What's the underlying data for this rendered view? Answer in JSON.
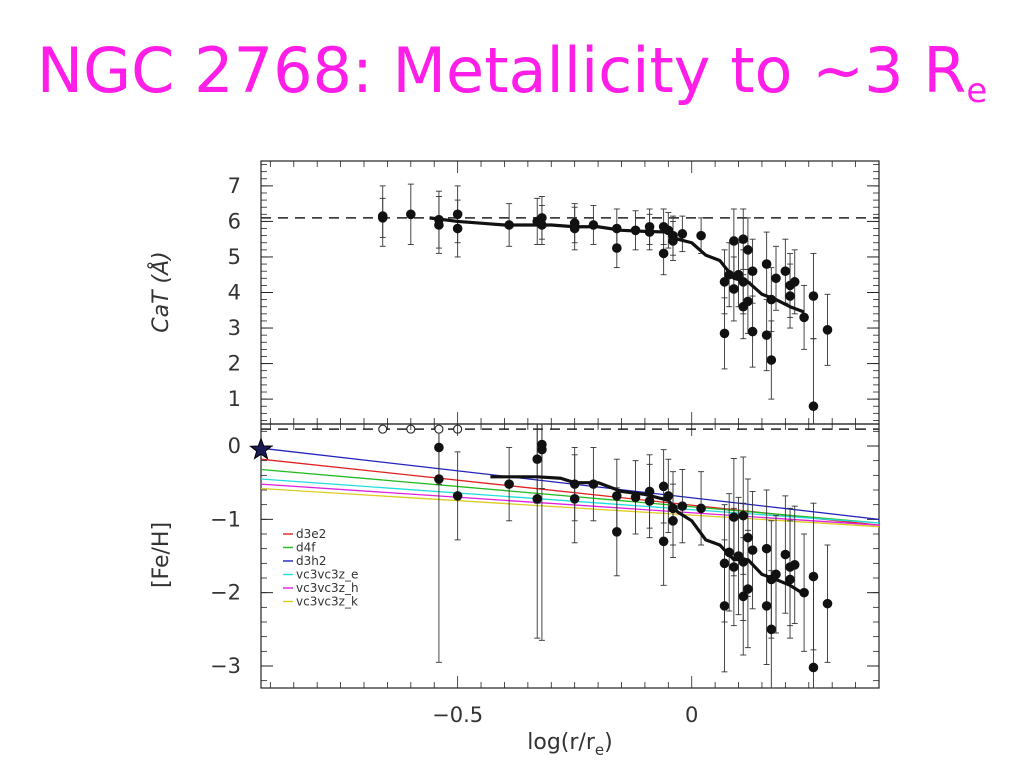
{
  "title": {
    "text": "NGC 2768: Metallicity to ~3 R",
    "subscript": "e"
  },
  "colors": {
    "title": "#ff1ee8",
    "points": "#111111",
    "profile": "#111111",
    "reference": "#222222"
  },
  "chart_data": [
    {
      "type": "scatter",
      "panel": "top",
      "ylabel": "CaT (Å)",
      "xlim": [
        -0.92,
        0.4
      ],
      "ylim": [
        0.3,
        7.7
      ],
      "xticks": [
        -0.5,
        0
      ],
      "yticks": [
        1,
        2,
        3,
        4,
        5,
        6,
        7
      ],
      "ytick_labels": [
        "1",
        "2",
        "3",
        "4",
        "5",
        "6",
        "7"
      ],
      "reference_line": 6.1,
      "points": [
        {
          "x": -0.66,
          "y": 6.15,
          "err": 0.85
        },
        {
          "x": -0.66,
          "y": 6.1,
          "err": 0.55
        },
        {
          "x": -0.6,
          "y": 6.2,
          "err": 0.85
        },
        {
          "x": -0.54,
          "y": 6.05,
          "err": 0.8
        },
        {
          "x": -0.54,
          "y": 5.9,
          "err": 0.8
        },
        {
          "x": -0.5,
          "y": 6.2,
          "err": 0.8
        },
        {
          "x": -0.5,
          "y": 5.8,
          "err": 0.8
        },
        {
          "x": -0.39,
          "y": 5.9,
          "err": 0.6
        },
        {
          "x": -0.33,
          "y": 6.0,
          "err": 0.65
        },
        {
          "x": -0.32,
          "y": 6.1,
          "err": 0.6
        },
        {
          "x": -0.32,
          "y": 5.9,
          "err": 0.55
        },
        {
          "x": -0.25,
          "y": 5.8,
          "err": 0.6
        },
        {
          "x": -0.25,
          "y": 5.95,
          "err": 0.55
        },
        {
          "x": -0.21,
          "y": 5.9,
          "err": 0.55
        },
        {
          "x": -0.16,
          "y": 5.8,
          "err": 0.55
        },
        {
          "x": -0.16,
          "y": 5.25,
          "err": 0.55
        },
        {
          "x": -0.12,
          "y": 5.75,
          "err": 0.55
        },
        {
          "x": -0.09,
          "y": 5.85,
          "err": 0.5
        },
        {
          "x": -0.09,
          "y": 5.7,
          "err": 0.5
        },
        {
          "x": -0.06,
          "y": 5.85,
          "err": 0.5
        },
        {
          "x": -0.06,
          "y": 5.1,
          "err": 0.6
        },
        {
          "x": -0.05,
          "y": 5.75,
          "err": 0.5
        },
        {
          "x": -0.04,
          "y": 5.6,
          "err": 0.55
        },
        {
          "x": -0.04,
          "y": 5.45,
          "err": 0.55
        },
        {
          "x": -0.02,
          "y": 5.65,
          "err": 0.5
        },
        {
          "x": 0.02,
          "y": 5.6,
          "err": 0.5
        },
        {
          "x": 0.07,
          "y": 4.3,
          "err": 0.9
        },
        {
          "x": 0.07,
          "y": 2.85,
          "err": 1.0
        },
        {
          "x": 0.08,
          "y": 4.5,
          "err": 0.9
        },
        {
          "x": 0.09,
          "y": 5.45,
          "err": 0.9
        },
        {
          "x": 0.09,
          "y": 4.1,
          "err": 0.9
        },
        {
          "x": 0.1,
          "y": 4.5,
          "err": 0.9
        },
        {
          "x": 0.11,
          "y": 5.5,
          "err": 0.85
        },
        {
          "x": 0.11,
          "y": 4.3,
          "err": 0.9
        },
        {
          "x": 0.11,
          "y": 3.6,
          "err": 0.9
        },
        {
          "x": 0.12,
          "y": 5.2,
          "err": 0.9
        },
        {
          "x": 0.12,
          "y": 3.75,
          "err": 0.9
        },
        {
          "x": 0.13,
          "y": 4.6,
          "err": 0.9
        },
        {
          "x": 0.13,
          "y": 2.9,
          "err": 1.0
        },
        {
          "x": 0.16,
          "y": 4.8,
          "err": 0.9
        },
        {
          "x": 0.16,
          "y": 2.8,
          "err": 1.0
        },
        {
          "x": 0.17,
          "y": 3.8,
          "err": 0.9
        },
        {
          "x": 0.17,
          "y": 2.1,
          "err": 1.1
        },
        {
          "x": 0.18,
          "y": 4.4,
          "err": 0.9
        },
        {
          "x": 0.2,
          "y": 4.6,
          "err": 0.9
        },
        {
          "x": 0.21,
          "y": 4.2,
          "err": 0.9
        },
        {
          "x": 0.21,
          "y": 3.9,
          "err": 0.9
        },
        {
          "x": 0.22,
          "y": 4.3,
          "err": 0.9
        },
        {
          "x": 0.24,
          "y": 3.3,
          "err": 0.9
        },
        {
          "x": 0.26,
          "y": 3.9,
          "err": 1.2
        },
        {
          "x": 0.26,
          "y": 0.8,
          "err": 1.9
        },
        {
          "x": 0.29,
          "y": 2.95,
          "err": 1.0
        }
      ],
      "profile_line": [
        {
          "x": -0.56,
          "y": 6.1
        },
        {
          "x": -0.5,
          "y": 6.0
        },
        {
          "x": -0.45,
          "y": 5.95
        },
        {
          "x": -0.4,
          "y": 5.9
        },
        {
          "x": -0.35,
          "y": 5.9
        },
        {
          "x": -0.3,
          "y": 5.9
        },
        {
          "x": -0.25,
          "y": 5.85
        },
        {
          "x": -0.2,
          "y": 5.85
        },
        {
          "x": -0.15,
          "y": 5.75
        },
        {
          "x": -0.1,
          "y": 5.72
        },
        {
          "x": -0.05,
          "y": 5.7
        },
        {
          "x": -0.03,
          "y": 5.5
        },
        {
          "x": 0.0,
          "y": 5.4
        },
        {
          "x": 0.03,
          "y": 5.05
        },
        {
          "x": 0.06,
          "y": 4.9
        },
        {
          "x": 0.09,
          "y": 4.4
        },
        {
          "x": 0.12,
          "y": 4.3
        },
        {
          "x": 0.15,
          "y": 3.95
        },
        {
          "x": 0.18,
          "y": 3.8
        },
        {
          "x": 0.21,
          "y": 3.6
        },
        {
          "x": 0.24,
          "y": 3.45
        }
      ]
    },
    {
      "type": "scatter",
      "panel": "bottom",
      "ylabel": "[Fe/H]",
      "xlabel": "log(r/r",
      "xlabel_sub": "e",
      "xlabel_close": ")",
      "xlim": [
        -0.92,
        0.4
      ],
      "ylim": [
        -3.3,
        0.3
      ],
      "xticks": [
        -0.5,
        0
      ],
      "xtick_labels": [
        "−0.5",
        "0"
      ],
      "yticks": [
        0,
        -1,
        -2,
        -3
      ],
      "ytick_labels": [
        "0",
        "−1",
        "−2",
        "−3"
      ],
      "reference_line": 0.23,
      "star_point": {
        "x": -0.92,
        "y": -0.05
      },
      "open_points": [
        {
          "x": -0.66,
          "y": 0.23
        },
        {
          "x": -0.6,
          "y": 0.23
        },
        {
          "x": -0.54,
          "y": 0.23
        },
        {
          "x": -0.5,
          "y": 0.23
        }
      ],
      "points": [
        {
          "x": -0.54,
          "y": -0.02,
          "err": 0.5
        },
        {
          "x": -0.54,
          "y": -0.45,
          "err": 2.5
        },
        {
          "x": -0.5,
          "y": -0.68,
          "err": 0.6
        },
        {
          "x": -0.39,
          "y": -0.52,
          "err": 0.5
        },
        {
          "x": -0.33,
          "y": -0.72,
          "err": 1.9
        },
        {
          "x": -0.33,
          "y": -0.18,
          "err": 0.6
        },
        {
          "x": -0.32,
          "y": 0.02,
          "err": 0.6
        },
        {
          "x": -0.32,
          "y": -0.05,
          "err": 2.6
        },
        {
          "x": -0.25,
          "y": -0.52,
          "err": 0.5
        },
        {
          "x": -0.25,
          "y": -0.72,
          "err": 0.6
        },
        {
          "x": -0.21,
          "y": -0.52,
          "err": 0.5
        },
        {
          "x": -0.16,
          "y": -0.68,
          "err": 0.5
        },
        {
          "x": -0.16,
          "y": -1.17,
          "err": 0.6
        },
        {
          "x": -0.12,
          "y": -0.7,
          "err": 0.5
        },
        {
          "x": -0.09,
          "y": -0.62,
          "err": 0.5
        },
        {
          "x": -0.09,
          "y": -0.75,
          "err": 0.5
        },
        {
          "x": -0.06,
          "y": -0.55,
          "err": 0.5
        },
        {
          "x": -0.06,
          "y": -1.3,
          "err": 0.6
        },
        {
          "x": -0.05,
          "y": -0.68,
          "err": 0.5
        },
        {
          "x": -0.04,
          "y": -0.85,
          "err": 0.5
        },
        {
          "x": -0.04,
          "y": -1.02,
          "err": 0.5
        },
        {
          "x": -0.02,
          "y": -0.82,
          "err": 0.5
        },
        {
          "x": 0.02,
          "y": -0.85,
          "err": 0.5
        },
        {
          "x": 0.07,
          "y": -1.6,
          "err": 0.8
        },
        {
          "x": 0.07,
          "y": -2.18,
          "err": 0.9
        },
        {
          "x": 0.08,
          "y": -1.45,
          "err": 0.8
        },
        {
          "x": 0.09,
          "y": -0.97,
          "err": 0.8
        },
        {
          "x": 0.09,
          "y": -1.65,
          "err": 0.8
        },
        {
          "x": 0.1,
          "y": -1.5,
          "err": 0.8
        },
        {
          "x": 0.11,
          "y": -0.95,
          "err": 0.8
        },
        {
          "x": 0.11,
          "y": -1.58,
          "err": 0.8
        },
        {
          "x": 0.11,
          "y": -2.05,
          "err": 0.8
        },
        {
          "x": 0.12,
          "y": -1.25,
          "err": 0.8
        },
        {
          "x": 0.12,
          "y": -1.95,
          "err": 0.8
        },
        {
          "x": 0.13,
          "y": -1.42,
          "err": 0.8
        },
        {
          "x": 0.16,
          "y": -1.4,
          "err": 0.8
        },
        {
          "x": 0.16,
          "y": -2.18,
          "err": 0.8
        },
        {
          "x": 0.17,
          "y": -1.82,
          "err": 0.8
        },
        {
          "x": 0.17,
          "y": -2.5,
          "err": 0.8
        },
        {
          "x": 0.18,
          "y": -1.75,
          "err": 0.8
        },
        {
          "x": 0.2,
          "y": -1.48,
          "err": 0.8
        },
        {
          "x": 0.21,
          "y": -1.65,
          "err": 0.8
        },
        {
          "x": 0.21,
          "y": -1.82,
          "err": 0.8
        },
        {
          "x": 0.22,
          "y": -1.62,
          "err": 0.8
        },
        {
          "x": 0.24,
          "y": -2.0,
          "err": 0.8
        },
        {
          "x": 0.26,
          "y": -1.78,
          "err": 1.0
        },
        {
          "x": 0.26,
          "y": -3.02,
          "err": 1.2
        },
        {
          "x": 0.29,
          "y": -2.15,
          "err": 0.8
        }
      ],
      "profile_line": [
        {
          "x": -0.43,
          "y": -0.42
        },
        {
          "x": -0.38,
          "y": -0.42
        },
        {
          "x": -0.33,
          "y": -0.42
        },
        {
          "x": -0.28,
          "y": -0.44
        },
        {
          "x": -0.25,
          "y": -0.5
        },
        {
          "x": -0.2,
          "y": -0.5
        },
        {
          "x": -0.15,
          "y": -0.62
        },
        {
          "x": -0.1,
          "y": -0.66
        },
        {
          "x": -0.05,
          "y": -0.74
        },
        {
          "x": -0.03,
          "y": -0.9
        },
        {
          "x": 0.0,
          "y": -1.02
        },
        {
          "x": 0.03,
          "y": -1.28
        },
        {
          "x": 0.06,
          "y": -1.35
        },
        {
          "x": 0.09,
          "y": -1.55
        },
        {
          "x": 0.12,
          "y": -1.55
        },
        {
          "x": 0.15,
          "y": -1.75
        },
        {
          "x": 0.18,
          "y": -1.82
        },
        {
          "x": 0.21,
          "y": -1.9
        },
        {
          "x": 0.24,
          "y": -2.02
        }
      ],
      "series": [
        {
          "name": "d3e2",
          "color": "#dd2222",
          "x": [
            -0.92,
            0.4
          ],
          "y": [
            -0.18,
            -1.08
          ]
        },
        {
          "name": "d4f",
          "color": "#22bb22",
          "x": [
            -0.92,
            0.4
          ],
          "y": [
            -0.32,
            -1.05
          ]
        },
        {
          "name": "d3h2",
          "color": "#2222bb",
          "x": [
            -0.92,
            0.4
          ],
          "y": [
            -0.03,
            -1.0
          ]
        },
        {
          "name": "vc3vc3z_e",
          "color": "#22dddd",
          "x": [
            -0.92,
            0.4
          ],
          "y": [
            -0.45,
            -1.05
          ]
        },
        {
          "name": "vc3vc3z_h",
          "color": "#dd22dd",
          "x": [
            -0.92,
            0.4
          ],
          "y": [
            -0.52,
            -1.08
          ]
        },
        {
          "name": "vc3vc3z_k",
          "color": "#ddcc22",
          "x": [
            -0.92,
            0.4
          ],
          "y": [
            -0.58,
            -1.1
          ]
        }
      ],
      "legend_position": "left"
    }
  ]
}
